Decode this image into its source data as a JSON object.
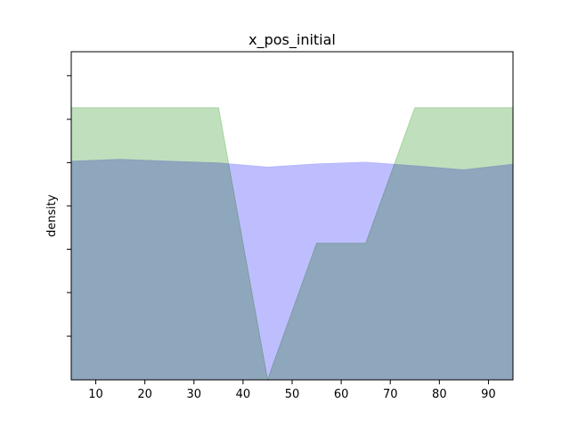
{
  "chart_data": {
    "type": "area",
    "title": "x_pos_initial",
    "xlabel": "",
    "ylabel": "density",
    "xlim": [
      5,
      95
    ],
    "ylim": [
      0,
      1
    ],
    "xticks": [
      10,
      20,
      30,
      40,
      50,
      60,
      70,
      80,
      90
    ],
    "yticks": [
      0.133,
      0.266,
      0.398,
      0.53,
      0.662,
      0.794,
      0.927
    ],
    "show_ytick_labels": false,
    "grid": false,
    "series": [
      {
        "color": "#9ecf99",
        "x": [
          5,
          35,
          45,
          55,
          65,
          75,
          85,
          95
        ],
        "y": [
          0.829,
          0.829,
          0.0,
          0.416,
          0.416,
          0.829,
          0.829,
          0.829
        ]
      },
      {
        "color": "#b3b3ff",
        "x": [
          5,
          15,
          25,
          35,
          45,
          55,
          65,
          75,
          85,
          95
        ],
        "y": [
          0.666,
          0.672,
          0.666,
          0.661,
          0.648,
          0.658,
          0.663,
          0.652,
          0.64,
          0.657
        ]
      }
    ]
  }
}
